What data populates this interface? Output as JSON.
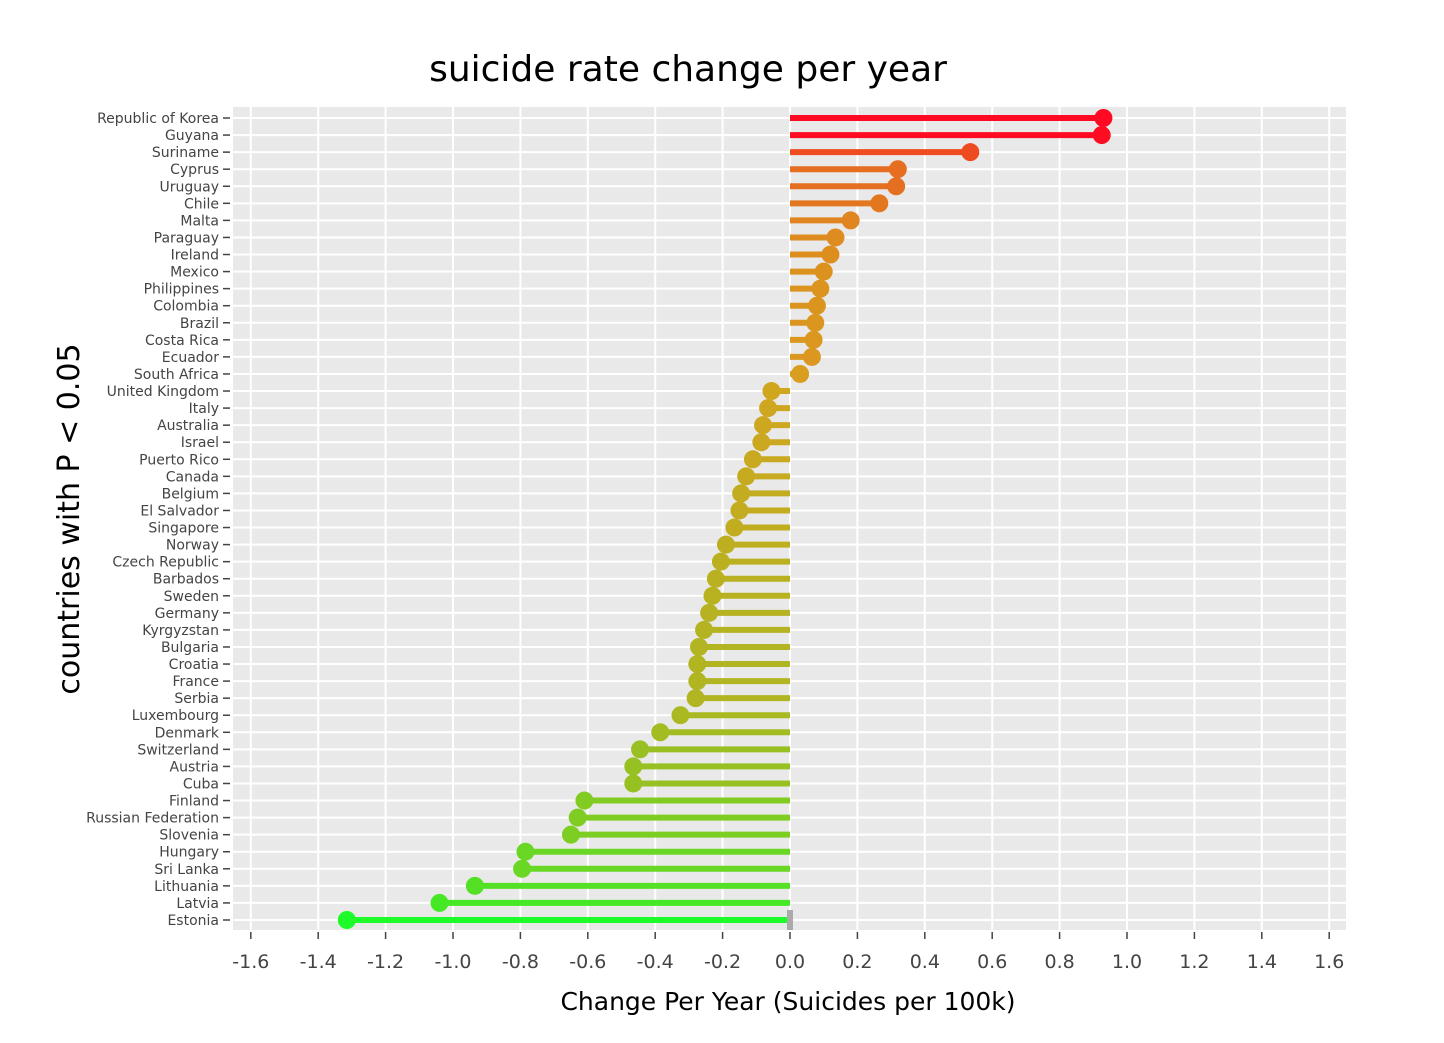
{
  "chart_data": {
    "type": "lollipop",
    "title": "suicide rate change per year",
    "xlabel": "Change Per Year (Suicides per 100k)",
    "ylabel": "countries with P < 0.05",
    "xlim": [
      -1.65,
      1.65
    ],
    "xticks": [
      -1.6,
      -1.4,
      -1.2,
      -1.0,
      -0.8,
      -0.6,
      -0.4,
      -0.2,
      0.0,
      0.2,
      0.4,
      0.6,
      0.8,
      1.0,
      1.2,
      1.4,
      1.6
    ],
    "xtick_labels": [
      "-1.6",
      "-1.4",
      "-1.2",
      "-1.0",
      "-0.8",
      "-0.6",
      "-0.4",
      "-0.2",
      "0.0",
      "0.2",
      "0.4",
      "0.6",
      "0.8",
      "1.0",
      "1.2",
      "1.4",
      "1.6"
    ],
    "grid": true,
    "background": "#e9e9e9",
    "color_scale": {
      "low": "#1ffb28",
      "mid": "#d8a21f",
      "high": "#ff0a22"
    },
    "categories": [
      "Republic of Korea",
      "Guyana",
      "Suriname",
      "Cyprus",
      "Uruguay",
      "Chile",
      "Malta",
      "Paraguay",
      "Ireland",
      "Mexico",
      "Philippines",
      "Colombia",
      "Brazil",
      "Costa Rica",
      "Ecuador",
      "South Africa",
      "United Kingdom",
      "Italy",
      "Australia",
      "Israel",
      "Puerto Rico",
      "Canada",
      "Belgium",
      "El Salvador",
      "Singapore",
      "Norway",
      "Czech Republic",
      "Barbados",
      "Sweden",
      "Germany",
      "Kyrgyzstan",
      "Bulgaria",
      "Croatia",
      "France",
      "Serbia",
      "Luxembourg",
      "Denmark",
      "Switzerland",
      "Austria",
      "Cuba",
      "Finland",
      "Russian Federation",
      "Slovenia",
      "Hungary",
      "Sri Lanka",
      "Lithuania",
      "Latvia",
      "Estonia"
    ],
    "values": [
      0.93,
      0.925,
      0.535,
      0.32,
      0.315,
      0.265,
      0.18,
      0.135,
      0.12,
      0.1,
      0.09,
      0.08,
      0.075,
      0.07,
      0.065,
      0.03,
      -0.055,
      -0.065,
      -0.08,
      -0.085,
      -0.11,
      -0.13,
      -0.145,
      -0.15,
      -0.165,
      -0.19,
      -0.205,
      -0.22,
      -0.23,
      -0.24,
      -0.255,
      -0.27,
      -0.275,
      -0.275,
      -0.28,
      -0.325,
      -0.385,
      -0.445,
      -0.465,
      -0.465,
      -0.61,
      -0.63,
      -0.65,
      -0.785,
      -0.795,
      -0.935,
      -1.04,
      -1.315
    ]
  }
}
